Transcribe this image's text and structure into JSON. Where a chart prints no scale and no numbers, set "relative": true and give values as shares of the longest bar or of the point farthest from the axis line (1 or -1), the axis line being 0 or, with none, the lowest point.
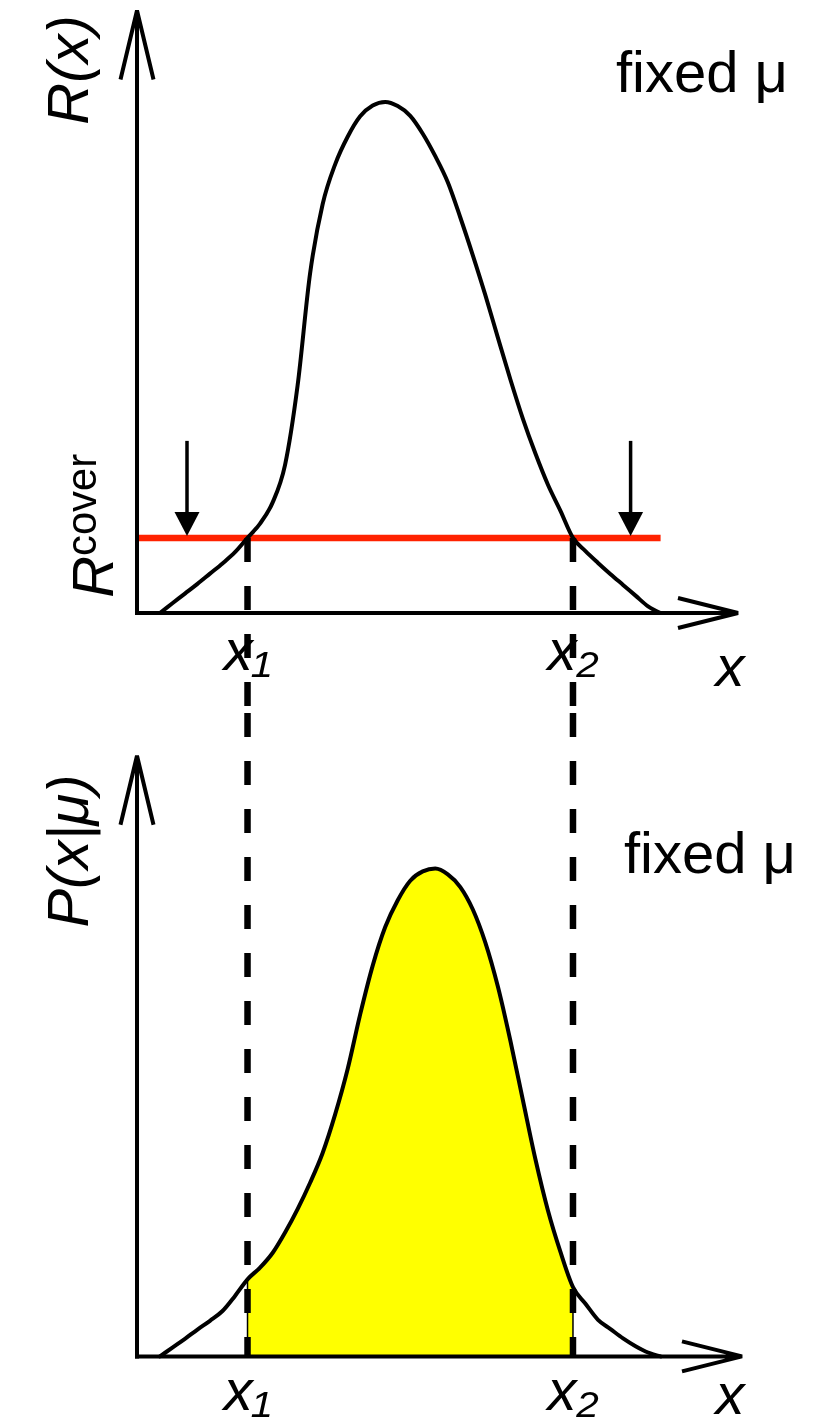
{
  "chart_data": [
    {
      "type": "line",
      "relative": true,
      "ylabel": "R(x)",
      "xlabel": "x",
      "annotations": [
        "fixed μ"
      ],
      "categories": [
        null,
        null,
        null,
        null,
        null,
        null,
        null,
        "x₁",
        null,
        null,
        null,
        null,
        null,
        null,
        null,
        null,
        null,
        null,
        null,
        null,
        null,
        null,
        null,
        null,
        null,
        null,
        null,
        null,
        null,
        null,
        null,
        null,
        null,
        "x₂",
        null,
        null,
        null,
        null,
        null,
        null,
        null
      ],
      "series": [
        {
          "color": "#000000",
          "values": [
            0,
            0.019,
            0.038,
            0.057,
            0.077,
            0.097,
            0.119,
            0.147,
            0.175,
            0.216,
            0.29,
            0.445,
            0.665,
            0.8,
            0.878,
            0.932,
            0.972,
            0.993,
            1.0,
            0.992,
            0.973,
            0.938,
            0.894,
            0.843,
            0.774,
            0.7,
            0.622,
            0.539,
            0.457,
            0.38,
            0.312,
            0.251,
            0.2,
            0.147,
            0.121,
            0.098,
            0.076,
            0.055,
            0.034,
            0.013,
            0
          ]
        }
      ],
      "ref_lines": [
        {
          "axis": "y",
          "value": 0.147,
          "label": "R$^{cover}$",
          "color": "#ff2200"
        },
        {
          "axis": "x",
          "value": "x₁",
          "color": "#000000",
          "line_style": "dashed"
        },
        {
          "axis": "x",
          "value": "x₂",
          "color": "#000000",
          "line_style": "dashed"
        }
      ]
    },
    {
      "type": "line",
      "relative": true,
      "ylabel": "P(x|μ)",
      "xlabel": "x",
      "annotations": [
        "fixed μ"
      ],
      "categories": [
        null,
        null,
        null,
        null,
        null,
        null,
        null,
        "x₁",
        null,
        null,
        null,
        null,
        null,
        null,
        null,
        null,
        null,
        null,
        null,
        null,
        null,
        null,
        null,
        null,
        null,
        null,
        null,
        null,
        null,
        null,
        null,
        null,
        null,
        "x₂",
        null,
        null,
        null,
        null,
        null,
        null,
        null
      ],
      "series": [
        {
          "type": "area",
          "color": "#ffff00",
          "values": [
            null,
            null,
            null,
            null,
            null,
            null,
            null,
            0.158,
            0.182,
            0.212,
            0.254,
            0.302,
            0.356,
            0.417,
            0.496,
            0.589,
            0.701,
            0.801,
            0.88,
            0.935,
            0.975,
            0.994,
            1.0,
            0.988,
            0.962,
            0.916,
            0.848,
            0.758,
            0.647,
            0.525,
            0.404,
            0.299,
            0.214,
            0.142,
            null,
            null,
            null,
            null,
            null,
            null,
            null
          ]
        },
        {
          "color": "#000000",
          "values": [
            0,
            0.018,
            0.036,
            0.055,
            0.073,
            0.093,
            0.124,
            0.158,
            0.182,
            0.212,
            0.254,
            0.302,
            0.356,
            0.417,
            0.496,
            0.589,
            0.701,
            0.801,
            0.88,
            0.935,
            0.975,
            0.994,
            1.0,
            0.988,
            0.962,
            0.916,
            0.848,
            0.758,
            0.647,
            0.525,
            0.404,
            0.299,
            0.214,
            0.142,
            0.108,
            0.075,
            0.056,
            0.037,
            0.021,
            0.008,
            0
          ]
        }
      ],
      "ref_lines": [
        {
          "axis": "x",
          "value": "x₁",
          "color": "#000000",
          "line_style": "dashed"
        },
        {
          "axis": "x",
          "value": "x₂",
          "color": "#000000",
          "line_style": "dashed"
        }
      ]
    }
  ]
}
